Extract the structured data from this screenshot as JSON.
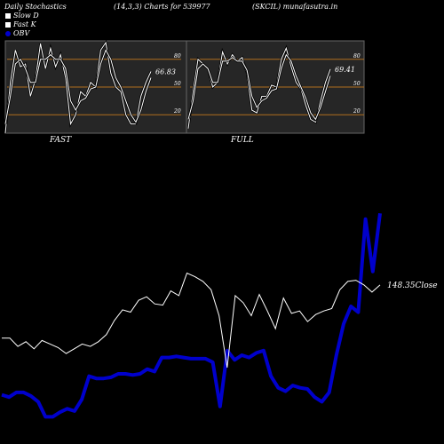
{
  "header": {
    "title": "Daily Stochastics",
    "params": "(14,3,3) Charts for 539977",
    "ticker": "(SKCIL) munafasutra.in"
  },
  "legend": [
    {
      "label": "Slow  D",
      "color": "#ffffff"
    },
    {
      "label": "Fast K",
      "color": "#ffffff"
    },
    {
      "label": "OBV",
      "color": "#0000cc"
    }
  ],
  "colors": {
    "background": "#000000",
    "panel_bg": "#262626",
    "panel_border": "#666666",
    "level_line": "#b06f1e",
    "price_line": "#ffffff",
    "obv_line": "#0000cc"
  },
  "chart_data": [
    {
      "type": "line",
      "name": "fast-stochastic",
      "panel_label": "FAST",
      "ylim": [
        0,
        100
      ],
      "ytick_labels": [
        "80",
        "50",
        "20"
      ],
      "levels": [
        80,
        50,
        20
      ],
      "last_value_label": "66.83",
      "series": [
        {
          "role": "fast_k",
          "values": [
            0,
            55,
            90,
            72,
            75,
            40,
            58,
            97,
            70,
            92,
            72,
            85,
            60,
            10,
            20,
            45,
            40,
            55,
            50,
            90,
            98,
            65,
            50,
            45,
            20,
            10,
            10,
            40,
            55,
            66.83
          ]
        },
        {
          "role": "slow_d",
          "values": [
            10,
            40,
            75,
            80,
            70,
            55,
            55,
            80,
            80,
            85,
            80,
            80,
            70,
            35,
            25,
            35,
            38,
            48,
            50,
            75,
            90,
            80,
            60,
            50,
            35,
            20,
            12,
            25,
            45,
            60
          ]
        }
      ]
    },
    {
      "type": "line",
      "name": "full-stochastic",
      "panel_label": "FULL",
      "ylim": [
        0,
        100
      ],
      "ytick_labels": [
        "80",
        "50",
        "20"
      ],
      "levels": [
        80,
        50,
        20
      ],
      "last_value_label": "69.41",
      "series": [
        {
          "role": "fast_k",
          "values": [
            5,
            45,
            80,
            75,
            70,
            50,
            55,
            88,
            75,
            85,
            78,
            82,
            65,
            25,
            22,
            40,
            40,
            52,
            50,
            80,
            92,
            72,
            55,
            48,
            30,
            15,
            12,
            35,
            55,
            69.41
          ]
        },
        {
          "role": "slow_d",
          "values": [
            15,
            35,
            70,
            75,
            70,
            55,
            55,
            78,
            78,
            82,
            78,
            78,
            68,
            40,
            28,
            35,
            38,
            46,
            48,
            70,
            85,
            78,
            62,
            50,
            38,
            22,
            15,
            28,
            45,
            62
          ]
        }
      ]
    },
    {
      "type": "line",
      "name": "price-and-obv",
      "last_value_label": "148.35",
      "last_value_suffix": "Close",
      "series": [
        {
          "role": "close",
          "values": [
            37,
            37,
            30,
            34,
            28,
            35,
            32,
            29,
            24,
            28,
            32,
            30,
            34,
            40,
            52,
            61,
            59,
            69,
            72,
            66,
            65,
            77,
            73,
            92,
            89,
            85,
            78,
            56,
            12,
            73,
            67,
            56,
            74,
            60,
            45,
            71,
            58,
            60,
            51,
            57,
            60,
            62,
            78,
            85,
            86,
            82,
            76,
            82
          ]
        },
        {
          "role": "obv",
          "values": [
            24,
            22,
            26,
            26,
            23,
            18,
            5,
            5,
            9,
            12,
            10,
            20,
            40,
            38,
            38,
            39,
            42,
            42,
            41,
            42,
            46,
            44,
            56,
            56,
            57,
            56,
            55,
            55,
            55,
            52,
            14,
            62,
            54,
            58,
            56,
            60,
            62,
            40,
            30,
            27,
            32,
            30,
            29,
            22,
            18,
            26,
            58,
            85,
            100,
            95,
            175,
            130,
            180
          ]
        }
      ]
    }
  ]
}
